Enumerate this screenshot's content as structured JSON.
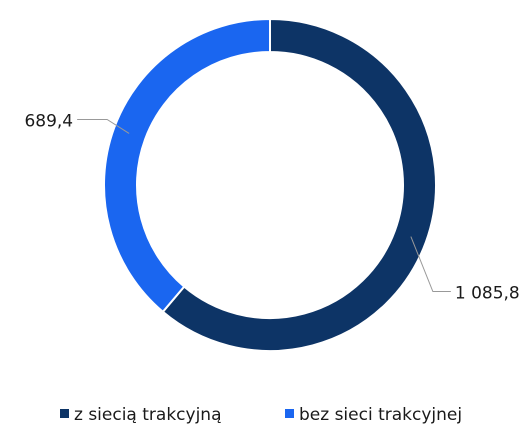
{
  "chart_data": {
    "type": "donut",
    "categories": [
      "z siecią trakcyjną",
      "bez sieci trakcyjnej"
    ],
    "values": [
      1085.8,
      689.4
    ],
    "value_labels": [
      "1 085,8",
      "689,4"
    ],
    "colors": [
      "#0d3466",
      "#1a66f0"
    ],
    "legend": "bottom"
  }
}
